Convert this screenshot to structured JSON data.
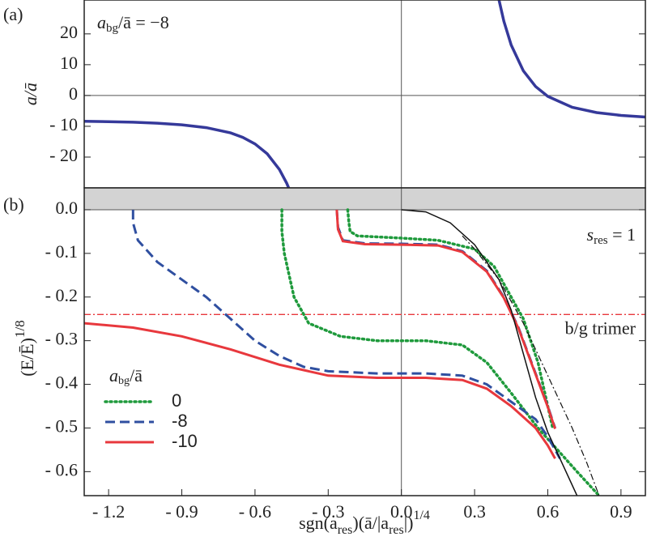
{
  "chart_data": [
    {
      "type": "line",
      "panel_label": "(a)",
      "ylabel": "a/ā",
      "annotation": [
        "a",
        "bg",
        "/ā = −8"
      ],
      "xlim": [
        -1.3,
        1.0
      ],
      "ylim": [
        -30,
        31
      ],
      "yticks": [
        20,
        10,
        0,
        {
          "value": -10,
          "label": "- 10"
        },
        {
          "value": -20,
          "label": "- 20"
        }
      ],
      "series": [
        {
          "color": "#35399a",
          "dash": "solid",
          "width": 3.5,
          "x": [
            -1.3,
            -1.2,
            -1.1,
            -1.0,
            -0.9,
            -0.8,
            -0.7,
            -0.65,
            -0.6,
            -0.55,
            -0.5,
            -0.47,
            -0.455,
            null,
            0.4,
            0.42,
            0.45,
            0.5,
            0.55,
            0.6,
            0.7,
            0.8,
            0.9,
            1.0
          ],
          "values": [
            -8.35,
            -8.48,
            -8.68,
            -9,
            -9.52,
            -10.44,
            -12.16,
            -13.6,
            -15.72,
            -18.93,
            -24,
            -28.49,
            -31.33,
            null,
            31.06,
            24.14,
            16.39,
            8,
            2.93,
            -0.28,
            -3.84,
            -5.56,
            -6.48,
            -7
          ]
        }
      ]
    },
    {
      "type": "line",
      "panel_label": "(b)",
      "ylabel": [
        "(E/Ē)",
        "1/8"
      ],
      "xlabel": [
        "sgn(a",
        "res",
        ")(ā/|a",
        "res",
        "|)",
        "1/4"
      ],
      "annotation": [
        "s",
        "res",
        " = 1"
      ],
      "xlim": [
        -1.3,
        1.0
      ],
      "ylim": [
        -0.655,
        0.05
      ],
      "shade_above_zero": true,
      "xticks": [
        {
          "value": -1.2,
          "label": "- 1.2"
        },
        {
          "value": -0.9,
          "label": "- 0.9"
        },
        {
          "value": -0.6,
          "label": "- 0.6"
        },
        {
          "value": -0.3,
          "label": "- 0.3"
        },
        {
          "value": 0,
          "label": "0.0"
        },
        0.3,
        0.6,
        0.9
      ],
      "yticks": [
        {
          "value": 0,
          "label": "0.0"
        },
        {
          "value": -0.1,
          "label": "- 0.1"
        },
        {
          "value": -0.2,
          "label": "- 0.2"
        },
        {
          "value": -0.3,
          "label": "- 0.3"
        },
        {
          "value": -0.4,
          "label": "- 0.4"
        },
        {
          "value": -0.5,
          "label": "- 0.5"
        },
        {
          "value": -0.6,
          "label": "- 0.6"
        }
      ],
      "hline": {
        "value": -0.24,
        "label": "b/g trimer",
        "color": "#e8383d"
      },
      "legend_title": [
        "a",
        "bg",
        "/ā"
      ],
      "series": [
        {
          "name": "0",
          "color": "#1f9a3c",
          "dash": "dotted",
          "width": 3.5,
          "x": [
            -0.22,
            -0.215,
            -0.21,
            -0.18,
            0,
            0.15,
            0.3,
            0.38,
            0.45,
            0.5,
            0.56,
            0.62,
            null,
            -0.49,
            -0.49,
            -0.48,
            -0.44,
            -0.38,
            -0.25,
            -0.1,
            0.1,
            0.25,
            0.35,
            0.45,
            0.56,
            0.72,
            0.81
          ],
          "values": [
            0,
            -0.03,
            -0.05,
            -0.06,
            -0.065,
            -0.07,
            -0.09,
            -0.13,
            -0.2,
            -0.25,
            -0.35,
            -0.5,
            null,
            0,
            -0.05,
            -0.1,
            -0.2,
            -0.26,
            -0.29,
            -0.3,
            -0.3,
            -0.31,
            -0.35,
            -0.42,
            -0.5,
            -0.6,
            -0.655
          ]
        },
        {
          "name": "-8",
          "color": "#2f4fa0",
          "dash": "dashed",
          "width": 3,
          "x": [
            -0.265,
            -0.26,
            -0.24,
            -0.15,
            0,
            0.15,
            0.25,
            0.35,
            0.42,
            0.48,
            0.54,
            0.6,
            0.63,
            null,
            -1.1,
            -1.1,
            -1.08,
            -1.0,
            -0.9,
            -0.8,
            -0.7,
            -0.6,
            -0.5,
            -0.4,
            -0.3,
            -0.1,
            0.1,
            0.25,
            0.35,
            0.45,
            0.55,
            0.6,
            0.65
          ],
          "values": [
            0,
            -0.04,
            -0.07,
            -0.077,
            -0.078,
            -0.08,
            -0.095,
            -0.14,
            -0.2,
            -0.27,
            -0.36,
            -0.45,
            -0.5,
            null,
            0,
            -0.03,
            -0.07,
            -0.12,
            -0.16,
            -0.2,
            -0.25,
            -0.3,
            -0.335,
            -0.36,
            -0.37,
            -0.375,
            -0.375,
            -0.38,
            -0.4,
            -0.44,
            -0.48,
            -0.52,
            -0.57
          ]
        },
        {
          "name": "-10",
          "color": "#e8383d",
          "dash": "solid",
          "width": 3,
          "x": [
            -0.265,
            -0.26,
            -0.24,
            -0.15,
            0,
            0.15,
            0.25,
            0.35,
            0.42,
            0.48,
            0.54,
            0.6,
            0.63,
            null,
            -1.3,
            -1.1,
            -0.9,
            -0.7,
            -0.5,
            -0.3,
            -0.1,
            0.1,
            0.25,
            0.35,
            0.45,
            0.55,
            0.6,
            0.63
          ],
          "values": [
            0,
            -0.045,
            -0.072,
            -0.079,
            -0.08,
            -0.082,
            -0.097,
            -0.142,
            -0.202,
            -0.272,
            -0.362,
            -0.452,
            -0.502,
            null,
            -0.26,
            -0.27,
            -0.29,
            -0.32,
            -0.355,
            -0.38,
            -0.385,
            -0.385,
            -0.39,
            -0.41,
            -0.45,
            -0.5,
            -0.54,
            -0.57
          ]
        },
        {
          "color": "#111111",
          "dash": "solid",
          "width": 1.5,
          "x": [
            0,
            0.1,
            0.2,
            0.3,
            0.4,
            0.45,
            0.5,
            0.55,
            0.6,
            0.65,
            0.72
          ],
          "values": [
            0,
            -0.005,
            -0.03,
            -0.08,
            -0.16,
            -0.23,
            -0.33,
            -0.43,
            -0.51,
            -0.57,
            -0.655
          ]
        },
        {
          "color": "#111111",
          "dash": "dashdot",
          "width": 1.2,
          "x": [
            0.25,
            0.3,
            0.4,
            0.5,
            0.6,
            0.7,
            0.76,
            0.81
          ],
          "values": [
            -0.06,
            -0.09,
            -0.16,
            -0.26,
            -0.38,
            -0.5,
            -0.58,
            -0.655
          ]
        }
      ]
    }
  ]
}
